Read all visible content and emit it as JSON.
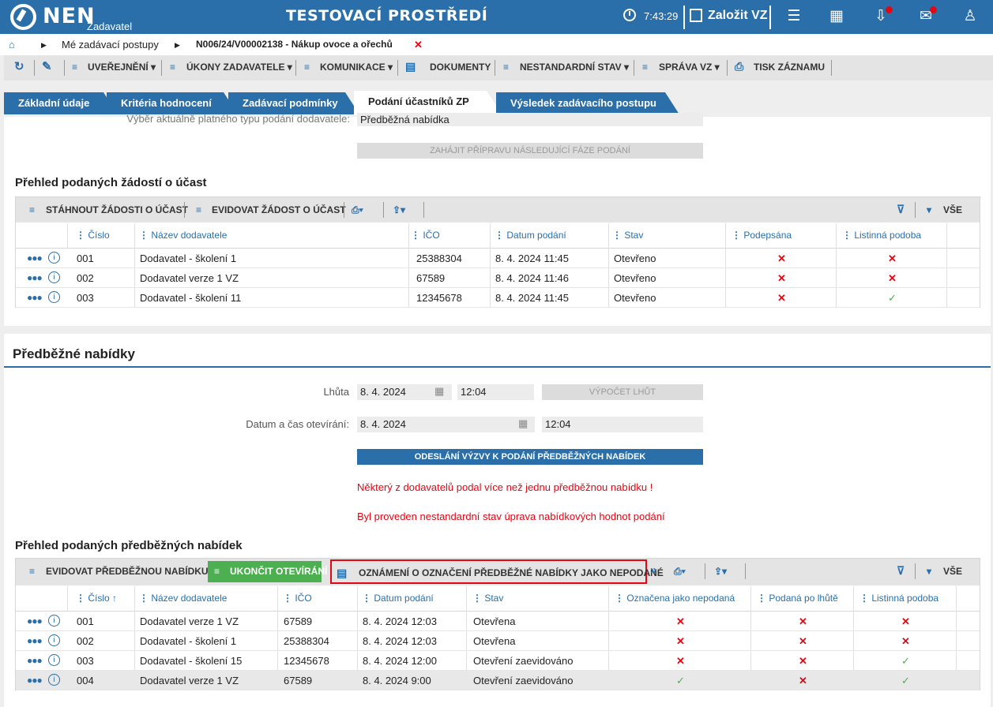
{
  "header": {
    "logo": "NEN",
    "logo_sub": "Zadavatel",
    "env": "TESTOVACÍ PROSTŘEDÍ",
    "time": "7:43:29",
    "new_vz": "Založit VZ"
  },
  "breadcrumb": {
    "item1": "Mé zadávací postupy",
    "item2": "N006/24/V00002138 - Nákup ovoce a ořechů"
  },
  "toolbar": {
    "uverejneni": "UVEŘEJNĚNÍ",
    "ukony": "ÚKONY ZADAVATELE",
    "komunikace": "KOMUNIKACE",
    "dokumenty": "DOKUMENTY",
    "nestandardni": "NESTANDARDNÍ STAV",
    "sprava": "SPRÁVA VZ",
    "tisk": "TISK ZÁZNAMU"
  },
  "tabs": [
    "Základní údaje",
    "Kritéria hodnocení",
    "Zadávací podmínky",
    "Podání účastníků ZP",
    "Výsledek zadávacího postupu"
  ],
  "top": {
    "label": "Výběr aktuálně platného typu podání dodavatele:",
    "value": "Předběžná nabídka",
    "button": "ZAHÁJIT PŘÍPRAVU NÁSLEDUJÍCÍ FÁZE PODÁNÍ"
  },
  "requests": {
    "title": "Přehled podaných žádostí o účast",
    "btn_download": "STÁHNOUT ŽÁDOSTI O ÚČAST",
    "btn_register": "EVIDOVAT ŽÁDOST O ÚČAST",
    "all": "VŠE",
    "columns": [
      "Číslo",
      "Název dodavatele",
      "IČO",
      "Datum podání",
      "Stav",
      "Podepsána",
      "Listinná podoba"
    ],
    "rows": [
      {
        "no": "001",
        "name": "Dodavatel - školení 1",
        "ico": "25388304",
        "date": "8. 4. 2024 11:45",
        "state": "Otevřeno",
        "signed": "✕",
        "paper": "✕"
      },
      {
        "no": "002",
        "name": "Dodavatel verze 1 VZ",
        "ico": "67589",
        "date": "8. 4. 2024 11:46",
        "state": "Otevřeno",
        "signed": "✕",
        "paper": "✕"
      },
      {
        "no": "003",
        "name": "Dodavatel - školení 11",
        "ico": "12345678",
        "date": "8. 4. 2024 11:45",
        "state": "Otevřeno",
        "signed": "✕",
        "paper": "✓"
      }
    ]
  },
  "prelim": {
    "title": "Předběžné nabídky",
    "lhuta_label": "Lhůta",
    "lhuta_date": "8. 4. 2024",
    "lhuta_time": "12:04",
    "calc_btn": "VÝPOČET LHŮT",
    "open_label": "Datum a čas otevírání:",
    "open_date": "8. 4. 2024",
    "open_time": "12:04",
    "send_btn": "ODESLÁNÍ VÝZVY K PODÁNÍ PŘEDBĚŽNÝCH NABÍDEK",
    "warn1": "Některý z dodavatelů podal více než jednu předběžnou nabídku !",
    "warn2": "Byl proveden nestandardní stav úprava nabídkových hodnot podání"
  },
  "offers": {
    "title": "Přehled podaných předběžných nabídek",
    "btn_register": "EVIDOVAT PŘEDBĚŽNOU NABÍDKU",
    "btn_end": "UKONČIT OTEVÍRÁNÍ",
    "btn_notice": "OZNÁMENÍ O OZNAČENÍ PŘEDBĚŽNÉ NABÍDKY JAKO NEPODANÉ",
    "all": "VŠE",
    "columns": [
      "Číslo",
      "Název dodavatele",
      "IČO",
      "Datum podání",
      "Stav",
      "Označena jako nepodaná",
      "Podaná po lhůtě",
      "Listinná podoba"
    ],
    "rows": [
      {
        "no": "001",
        "name": "Dodavatel verze 1 VZ",
        "ico": "67589",
        "date": "8. 4. 2024 12:03",
        "state": "Otevřena",
        "marked": "✕",
        "late": "✕",
        "paper": "✕"
      },
      {
        "no": "002",
        "name": "Dodavatel - školení 1",
        "ico": "25388304",
        "date": "8. 4. 2024 12:03",
        "state": "Otevřena",
        "marked": "✕",
        "late": "✕",
        "paper": "✕"
      },
      {
        "no": "003",
        "name": "Dodavatel - školení 15",
        "ico": "12345678",
        "date": "8. 4. 2024 12:00",
        "state": "Otevření zaevidováno",
        "marked": "✕",
        "late": "✕",
        "paper": "✓"
      },
      {
        "no": "004",
        "name": "Dodavatel verze 1 VZ",
        "ico": "67589",
        "date": "8. 4. 2024 9:00",
        "state": "Otevření zaevidováno",
        "marked": "✓",
        "late": "✕",
        "paper": "✓"
      }
    ]
  }
}
